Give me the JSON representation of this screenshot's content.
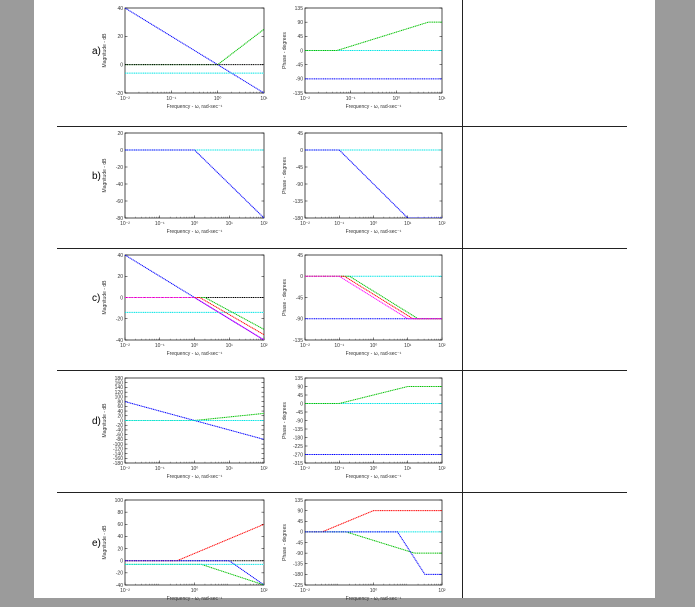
{
  "rows": [
    {
      "label": "a)",
      "mag": {
        "ylabel": "Magnitude - dB",
        "ylim": [
          -20,
          40
        ],
        "yticks": [
          -20,
          0,
          20,
          40
        ],
        "xticks": [
          "10⁻²",
          "10⁻¹",
          "10⁰",
          "10¹"
        ],
        "xdecades": [
          -2,
          1
        ],
        "xlabel": "Frequency - ω, rad-sec⁻¹",
        "series": [
          {
            "color": "#0000ff",
            "points": [
              [
                -2,
                40
              ],
              [
                1,
                -20
              ]
            ]
          },
          {
            "color": "#00c000",
            "points": [
              [
                -2,
                0
              ],
              [
                0,
                0
              ],
              [
                1,
                25
              ]
            ]
          },
          {
            "color": "#000000",
            "points": [
              [
                -2,
                0
              ],
              [
                1,
                0
              ]
            ]
          },
          {
            "color": "#00e5e5",
            "points": [
              [
                -2,
                -6
              ],
              [
                1,
                -6
              ]
            ]
          }
        ]
      },
      "phase": {
        "ylabel": "Phase - degrees",
        "ylim": [
          -135,
          135
        ],
        "yticks": [
          -135,
          -90,
          -45,
          0,
          45,
          90,
          135
        ],
        "xticks": [
          "10⁻²",
          "10⁻¹",
          "10⁰",
          "10¹"
        ],
        "xdecades": [
          -2,
          1
        ],
        "xlabel": "Frequency - ω, rad-sec⁻¹",
        "series": [
          {
            "color": "#00e5e5",
            "points": [
              [
                -2,
                0
              ],
              [
                1,
                0
              ]
            ]
          },
          {
            "color": "#00c000",
            "points": [
              [
                -2,
                0
              ],
              [
                -1.3,
                0
              ],
              [
                0.7,
                90
              ],
              [
                1,
                90
              ]
            ]
          },
          {
            "color": "#0000ff",
            "points": [
              [
                -2,
                -90
              ],
              [
                1,
                -90
              ]
            ]
          }
        ]
      }
    },
    {
      "label": "b)",
      "mag": {
        "ylabel": "Magnitude - dB",
        "ylim": [
          -80,
          20
        ],
        "yticks": [
          -80,
          -60,
          -40,
          -20,
          0,
          20
        ],
        "xticks": [
          "10⁻²",
          "10⁻¹",
          "10⁰",
          "10¹",
          "10²"
        ],
        "xdecades": [
          -2,
          2
        ],
        "xlabel": "Frequency - ω, rad-sec⁻¹",
        "series": [
          {
            "color": "#00e5e5",
            "points": [
              [
                -2,
                0
              ],
              [
                2,
                0
              ]
            ]
          },
          {
            "color": "#0000ff",
            "points": [
              [
                -2,
                0
              ],
              [
                0,
                0
              ],
              [
                2,
                -80
              ]
            ]
          }
        ]
      },
      "phase": {
        "ylabel": "Phase - degrees",
        "ylim": [
          -180,
          45
        ],
        "yticks": [
          -180,
          -135,
          -90,
          -45,
          0,
          45
        ],
        "xticks": [
          "10⁻²",
          "10⁻¹",
          "10⁰",
          "10¹",
          "10²"
        ],
        "xdecades": [
          -2,
          2
        ],
        "xlabel": "Frequency - ω, rad-sec⁻¹",
        "series": [
          {
            "color": "#00e5e5",
            "points": [
              [
                -2,
                0
              ],
              [
                2,
                0
              ]
            ]
          },
          {
            "color": "#0000ff",
            "points": [
              [
                -2,
                0
              ],
              [
                -1,
                0
              ],
              [
                1,
                -180
              ],
              [
                2,
                -180
              ]
            ]
          }
        ]
      }
    },
    {
      "label": "c)",
      "mag": {
        "ylabel": "Magnitude - dB",
        "ylim": [
          -40,
          40
        ],
        "yticks": [
          -40,
          -20,
          0,
          20,
          40
        ],
        "xticks": [
          "10⁻²",
          "10⁻¹",
          "10⁰",
          "10¹",
          "10²"
        ],
        "xdecades": [
          -2,
          2
        ],
        "xlabel": "Frequency - ω, rad-sec⁻¹",
        "series": [
          {
            "color": "#0000ff",
            "points": [
              [
                -2,
                40
              ],
              [
                2,
                -40
              ]
            ]
          },
          {
            "color": "#00e5e5",
            "points": [
              [
                -2,
                -14
              ],
              [
                2,
                -14
              ]
            ]
          },
          {
            "color": "#000000",
            "points": [
              [
                -2,
                0
              ],
              [
                2,
                0
              ]
            ]
          },
          {
            "color": "#00c000",
            "points": [
              [
                -2,
                0
              ],
              [
                0.3,
                0
              ],
              [
                2,
                -30
              ]
            ]
          },
          {
            "color": "#ff0000",
            "points": [
              [
                -2,
                0
              ],
              [
                0.15,
                0
              ],
              [
                2,
                -35
              ]
            ]
          },
          {
            "color": "#ff00ff",
            "points": [
              [
                -2,
                0
              ],
              [
                0,
                0
              ],
              [
                2,
                -40
              ]
            ]
          }
        ]
      },
      "phase": {
        "ylabel": "Phase - degrees",
        "ylim": [
          -135,
          45
        ],
        "yticks": [
          -135,
          -90,
          -45,
          0,
          45
        ],
        "xticks": [
          "10⁻²",
          "10⁻¹",
          "10⁰",
          "10¹",
          "10²"
        ],
        "xdecades": [
          -2,
          2
        ],
        "xlabel": "Frequency - ω, rad-sec⁻¹",
        "series": [
          {
            "color": "#00e5e5",
            "points": [
              [
                -2,
                0
              ],
              [
                2,
                0
              ]
            ]
          },
          {
            "color": "#0000ff",
            "points": [
              [
                -2,
                -90
              ],
              [
                2,
                -90
              ]
            ]
          },
          {
            "color": "#00c000",
            "points": [
              [
                -2,
                0
              ],
              [
                -0.7,
                0
              ],
              [
                1.3,
                -90
              ],
              [
                2,
                -90
              ]
            ]
          },
          {
            "color": "#ff0000",
            "points": [
              [
                -2,
                0
              ],
              [
                -0.85,
                0
              ],
              [
                1.15,
                -90
              ],
              [
                2,
                -90
              ]
            ]
          },
          {
            "color": "#ff00ff",
            "points": [
              [
                -2,
                0
              ],
              [
                -1,
                0
              ],
              [
                1,
                -90
              ],
              [
                2,
                -90
              ]
            ]
          }
        ]
      }
    },
    {
      "label": "d)",
      "mag": {
        "ylabel": "Magnitude - dB",
        "ylim": [
          -180,
          180
        ],
        "yticks": [
          -180,
          -160,
          -140,
          -120,
          -100,
          -80,
          -60,
          -40,
          -20,
          0,
          20,
          40,
          60,
          80,
          100,
          120,
          140,
          160,
          180
        ],
        "xticks": [
          "10⁻²",
          "10⁻¹",
          "10⁰",
          "10¹",
          "10²"
        ],
        "xdecades": [
          -2,
          2
        ],
        "xlabel": "Frequency - ω, rad-sec⁻¹",
        "series": [
          {
            "color": "#0000ff",
            "points": [
              [
                -2,
                80
              ],
              [
                2,
                -80
              ]
            ]
          },
          {
            "color": "#00c000",
            "points": [
              [
                -2,
                0
              ],
              [
                0,
                0
              ],
              [
                2,
                30
              ]
            ]
          },
          {
            "color": "#00e5e5",
            "points": [
              [
                -2,
                0
              ],
              [
                2,
                0
              ]
            ]
          }
        ]
      },
      "phase": {
        "ylabel": "Phase - degrees",
        "ylim": [
          -315,
          135
        ],
        "yticks": [
          -315,
          -270,
          -225,
          -180,
          -135,
          -90,
          -45,
          0,
          45,
          90,
          135
        ],
        "xticks": [
          "10⁻²",
          "10⁻¹",
          "10⁰",
          "10¹",
          "10²"
        ],
        "xdecades": [
          -2,
          2
        ],
        "xlabel": "Frequency - ω, rad-sec⁻¹",
        "series": [
          {
            "color": "#00e5e5",
            "points": [
              [
                -2,
                0
              ],
              [
                2,
                0
              ]
            ]
          },
          {
            "color": "#00c000",
            "points": [
              [
                -2,
                0
              ],
              [
                -1,
                0
              ],
              [
                1,
                90
              ],
              [
                2,
                90
              ]
            ]
          },
          {
            "color": "#0000ff",
            "points": [
              [
                -2,
                -270
              ],
              [
                2,
                -270
              ]
            ]
          }
        ]
      }
    },
    {
      "label": "e)",
      "mag": {
        "ylabel": "Magnitude - dB",
        "ylim": [
          -40,
          100
        ],
        "yticks": [
          -40,
          -20,
          0,
          20,
          40,
          60,
          80,
          100
        ],
        "xticks": [
          "10⁻²",
          "10⁰",
          "10²"
        ],
        "xdecades": [
          -2,
          2
        ],
        "xlabel": "Frequency - ω, rad-sec⁻¹",
        "series": [
          {
            "color": "#000000",
            "points": [
              [
                -2,
                0
              ],
              [
                2,
                0
              ]
            ]
          },
          {
            "color": "#ff0000",
            "points": [
              [
                -2,
                0
              ],
              [
                -0.5,
                0
              ],
              [
                2,
                60
              ]
            ]
          },
          {
            "color": "#0000ff",
            "points": [
              [
                -2,
                0
              ],
              [
                1,
                0
              ],
              [
                2,
                -40
              ]
            ]
          },
          {
            "color": "#00c000",
            "points": [
              [
                -2,
                -6
              ],
              [
                0.2,
                -6
              ],
              [
                2,
                -40
              ]
            ]
          },
          {
            "color": "#00e5e5",
            "points": [
              [
                -2,
                -6
              ],
              [
                2,
                -6
              ]
            ]
          }
        ]
      },
      "phase": {
        "ylabel": "Phase - degrees",
        "ylim": [
          -225,
          135
        ],
        "yticks": [
          -225,
          -180,
          -135,
          -90,
          -45,
          0,
          45,
          90,
          135
        ],
        "xticks": [
          "10⁻²",
          "10⁰",
          "10²"
        ],
        "xdecades": [
          -2,
          2
        ],
        "xlabel": "Frequency - ω, rad-sec⁻¹",
        "series": [
          {
            "color": "#00e5e5",
            "points": [
              [
                -2,
                0
              ],
              [
                2,
                0
              ]
            ]
          },
          {
            "color": "#ff0000",
            "points": [
              [
                -2,
                0
              ],
              [
                -1.5,
                0
              ],
              [
                0,
                90
              ],
              [
                2,
                90
              ]
            ]
          },
          {
            "color": "#00c000",
            "points": [
              [
                -2,
                0
              ],
              [
                -0.8,
                0
              ],
              [
                1.2,
                -90
              ],
              [
                2,
                -90
              ]
            ]
          },
          {
            "color": "#0000ff",
            "points": [
              [
                -2,
                0
              ],
              [
                0.7,
                0
              ],
              [
                1.5,
                -180
              ],
              [
                2,
                -180
              ]
            ]
          }
        ]
      }
    }
  ]
}
